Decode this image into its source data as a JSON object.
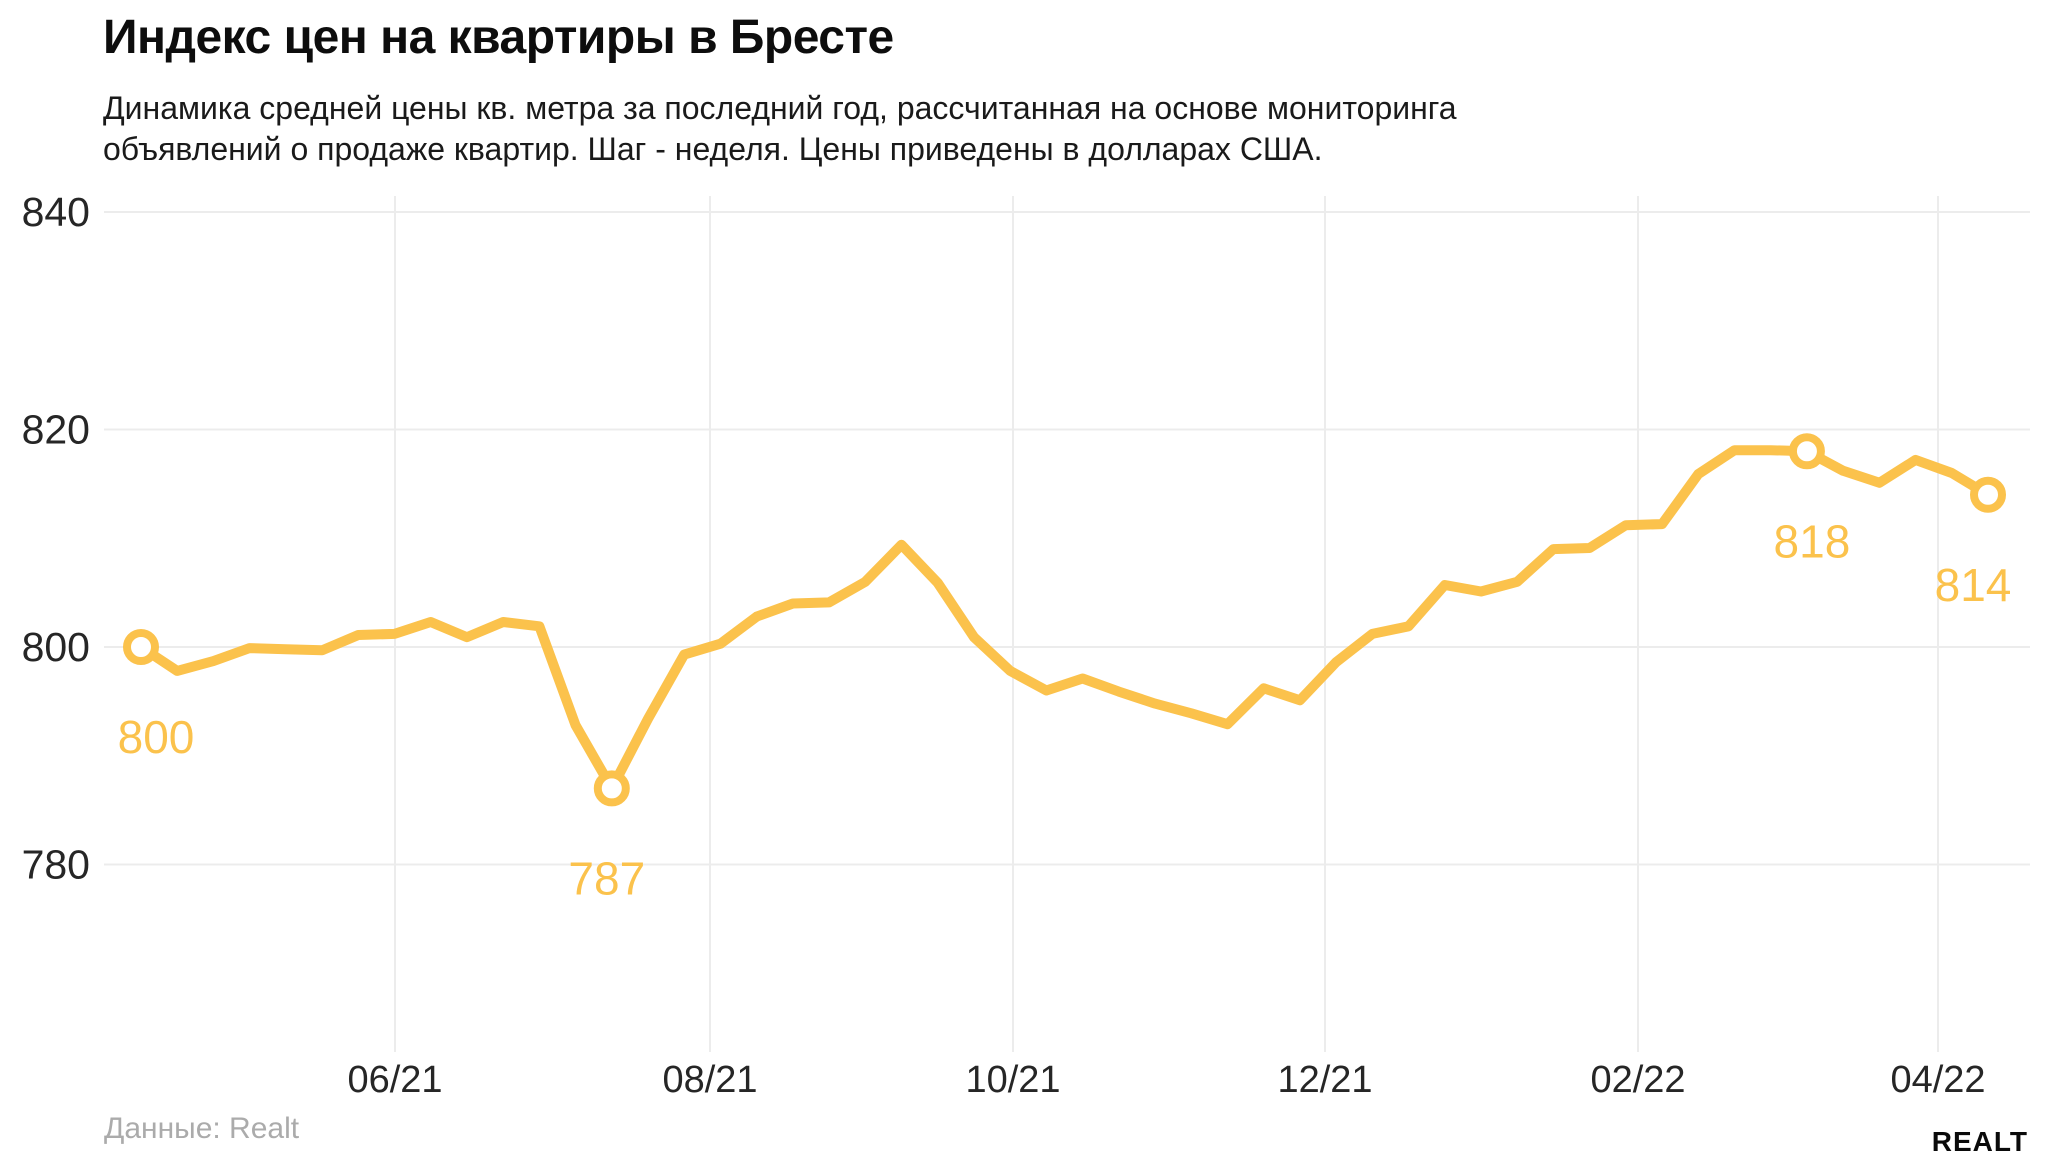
{
  "header": {
    "title": "Индекс цен на квартиры в Бресте",
    "subtitle_lines": [
      "Динамика средней цены кв. метра за последний год, рассчитанная на основе мониторинга",
      "объявлений о продаже квартир. Шаг - неделя. Цены приведены в долларах США."
    ]
  },
  "footer": {
    "source": "Данные: Realt",
    "logo_text": "Realt"
  },
  "chart_data": {
    "type": "line",
    "title": "Индекс цен на квартиры в Бресте",
    "unit": "USD за кв. метр",
    "step": "неделя",
    "series": [
      {
        "name": "Средняя цена кв. метра",
        "values": [
          800,
          797.8,
          798.7,
          799.9,
          799.8,
          799.7,
          801.1,
          801.2,
          802.3,
          800.9,
          802.3,
          801.9,
          792.8,
          787,
          793.4,
          799.3,
          800.3,
          802.8,
          804,
          804.1,
          806,
          809.4,
          805.9,
          800.9,
          797.8,
          796,
          797.1,
          795.9,
          794.8,
          793.9,
          792.9,
          796.2,
          795.1,
          798.6,
          801.2,
          801.9,
          805.7,
          805.1,
          806,
          809,
          809.1,
          811.2,
          811.3,
          815.9,
          818.1,
          818.1,
          818,
          816.2,
          815.1,
          817.2,
          816,
          814
        ]
      }
    ],
    "x_axis": {
      "tick_labels": [
        "06/21",
        "08/21",
        "10/21",
        "12/21",
        "02/22",
        "04/22"
      ]
    },
    "y_axis": {
      "ticks": [
        840,
        820,
        800,
        780
      ],
      "range": [
        762,
        842
      ]
    },
    "grid": "on",
    "legend": "none",
    "annotated_points": [
      {
        "index": 0,
        "label": "800"
      },
      {
        "index": 13,
        "label": "787"
      },
      {
        "index": 46,
        "label": "818"
      },
      {
        "index": 51,
        "label": "814"
      }
    ],
    "colors": {
      "line": "#fbc24c",
      "marker_fill": "#ffffff",
      "data_label": "#fbc24c",
      "grid": "#ececec",
      "axis_text": "#262626",
      "source_text": "#ababab"
    }
  }
}
